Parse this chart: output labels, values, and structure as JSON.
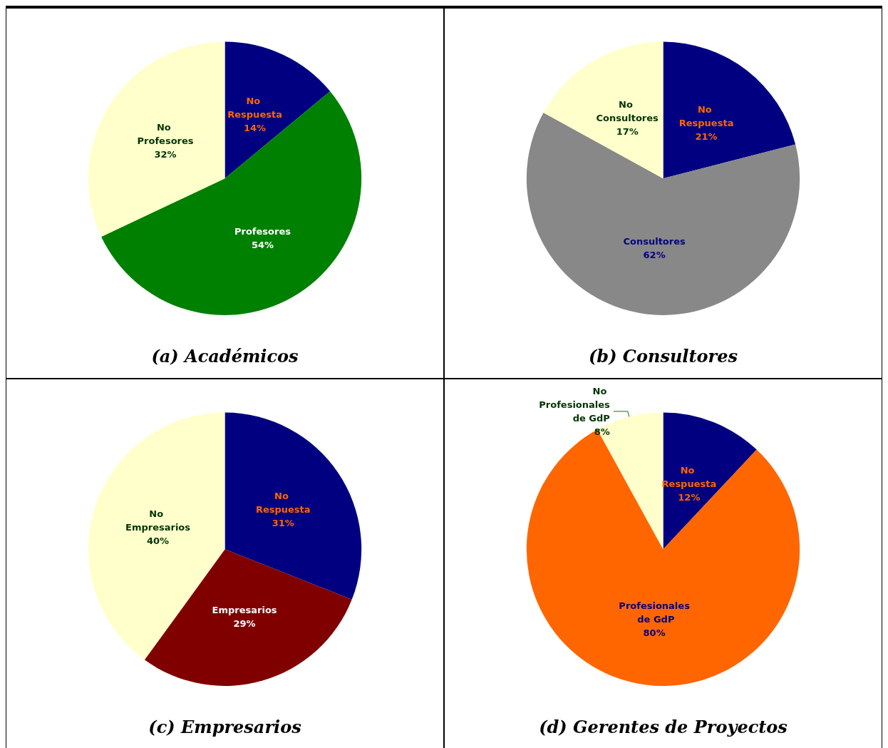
{
  "chart_data": [
    {
      "type": "pie",
      "title": "(a) Académicos",
      "categories": [
        "No Respuesta",
        "Profesores",
        "No Profesores"
      ],
      "values": [
        14,
        54,
        32
      ],
      "value_labels": [
        "14%",
        "54%",
        "32%"
      ],
      "colors": [
        "#000080",
        "#008000",
        "#ffffcc"
      ]
    },
    {
      "type": "pie",
      "title": "(b) Consultores",
      "categories": [
        "No Respuesta",
        "Consultores",
        "No Consultores"
      ],
      "values": [
        21,
        62,
        17
      ],
      "value_labels": [
        "21%",
        "62%",
        "17%"
      ],
      "colors": [
        "#000080",
        "#888888",
        "#ffffcc"
      ]
    },
    {
      "type": "pie",
      "title": "(c) Empresarios",
      "categories": [
        "No Respuesta",
        "Empresarios",
        "No Empresarios"
      ],
      "values": [
        31,
        29,
        40
      ],
      "value_labels": [
        "31%",
        "29%",
        "40%"
      ],
      "colors": [
        "#000080",
        "#800000",
        "#ffffcc"
      ]
    },
    {
      "type": "pie",
      "title": "(d) Gerentes de Proyectos",
      "categories": [
        "No Respuesta",
        "Profesionales de GdP",
        "No Profesionales de GdP"
      ],
      "values": [
        12,
        80,
        8
      ],
      "value_labels": [
        "12%",
        "80%",
        "8%"
      ],
      "colors": [
        "#000080",
        "#ff6600",
        "#ffffcc"
      ]
    }
  ]
}
